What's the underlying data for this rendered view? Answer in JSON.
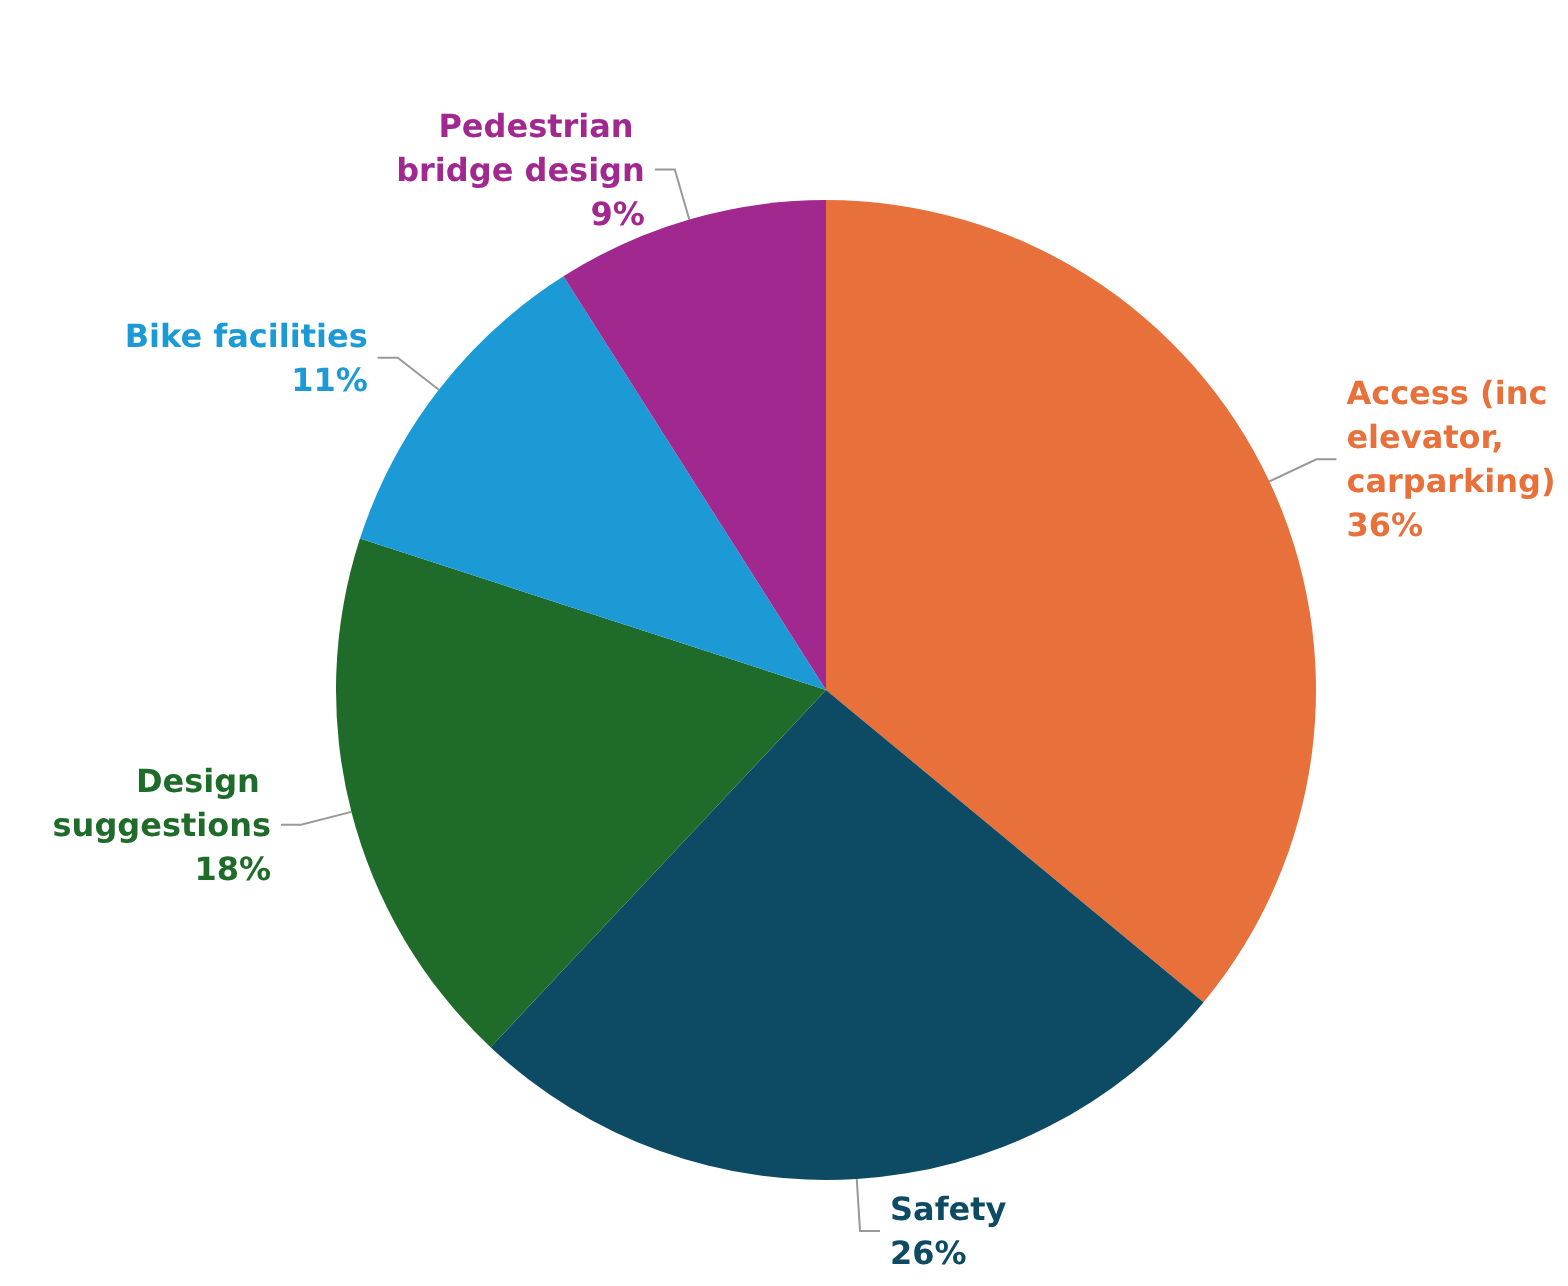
{
  "chart_data": {
    "type": "pie",
    "categories": [
      "Access (inc elevator, carparking)",
      "Safety",
      "Design suggestions",
      "Bike facilities",
      "Pedestrian bridge design"
    ],
    "values": [
      36,
      26,
      18,
      11,
      9
    ],
    "value_labels": [
      "36%",
      "26%",
      "18%",
      "11%",
      "9%"
    ],
    "colors": [
      "#e8703a",
      "#0d4a63",
      "#1e6b2a",
      "#1b9ad6",
      "#a0288f"
    ]
  }
}
